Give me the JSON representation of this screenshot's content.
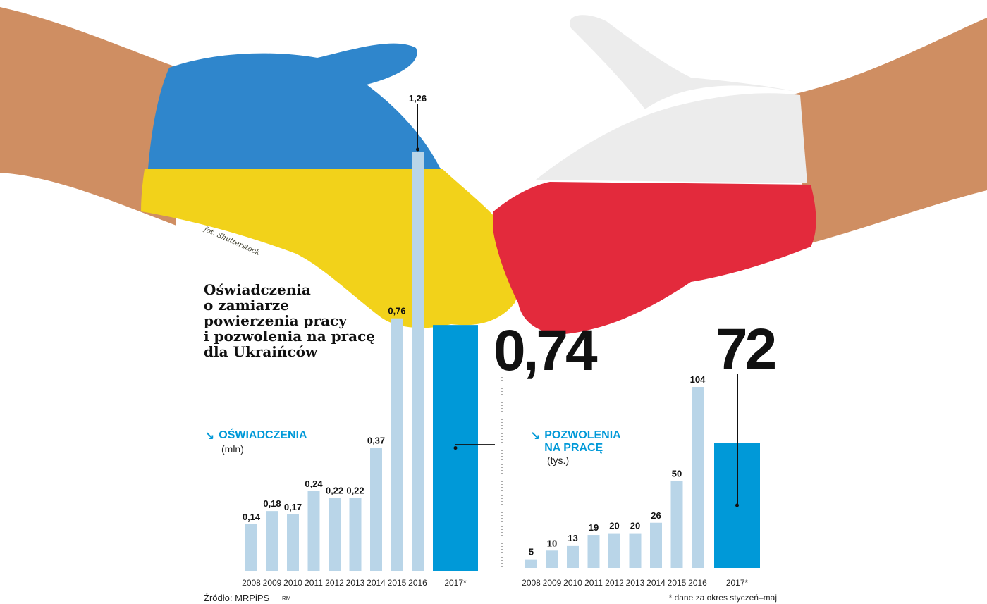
{
  "title": "Oświadczenia\no zamiarze\npowierzenia pracy\ni pozwolenia na pracę\ndla Ukraińców",
  "photo_credit": "fot. Shutterstock",
  "source": "Źródło: MRPiPS",
  "author_initials": "RM",
  "footnote": "* dane za okres styczeń–maj",
  "colors": {
    "bar_history": "#b9d5e8",
    "bar_highlight": "#0099d8",
    "accent_text": "#0099d8",
    "ukraine_blue": "#2f86cc",
    "ukraine_yellow": "#f2d21a",
    "poland_red": "#e32a3c",
    "poland_white": "#efefef",
    "skin": "#cf8e62"
  },
  "icon": "arrow-down-right-icon",
  "chart_data": [
    {
      "type": "bar",
      "name": "OŚWIADCZENIA",
      "unit": "(mln)",
      "categories": [
        "2008",
        "2009",
        "2010",
        "2011",
        "2012",
        "2013",
        "2014",
        "2015",
        "2016",
        "2017*"
      ],
      "values": [
        0.14,
        0.18,
        0.17,
        0.24,
        0.22,
        0.22,
        0.37,
        0.76,
        1.26,
        0.74
      ],
      "labels": [
        "0,14",
        "0,18",
        "0,17",
        "0,24",
        "0,22",
        "0,22",
        "0,37",
        "0,76",
        "1,26",
        "0,74"
      ],
      "highlight": "2017*",
      "ylim": [
        0,
        1.26
      ]
    },
    {
      "type": "bar",
      "name": "POZWOLENIA\nNA PRACĘ",
      "unit": "(tys.)",
      "categories": [
        "2008",
        "2009",
        "2010",
        "2011",
        "2012",
        "2013",
        "2014",
        "2015",
        "2016",
        "2017*"
      ],
      "values": [
        5,
        10,
        13,
        19,
        20,
        20,
        26,
        50,
        104,
        72
      ],
      "labels": [
        "5",
        "10",
        "13",
        "19",
        "20",
        "20",
        "26",
        "50",
        "104",
        "72"
      ],
      "highlight": "2017*",
      "ylim": [
        0,
        104
      ]
    }
  ]
}
